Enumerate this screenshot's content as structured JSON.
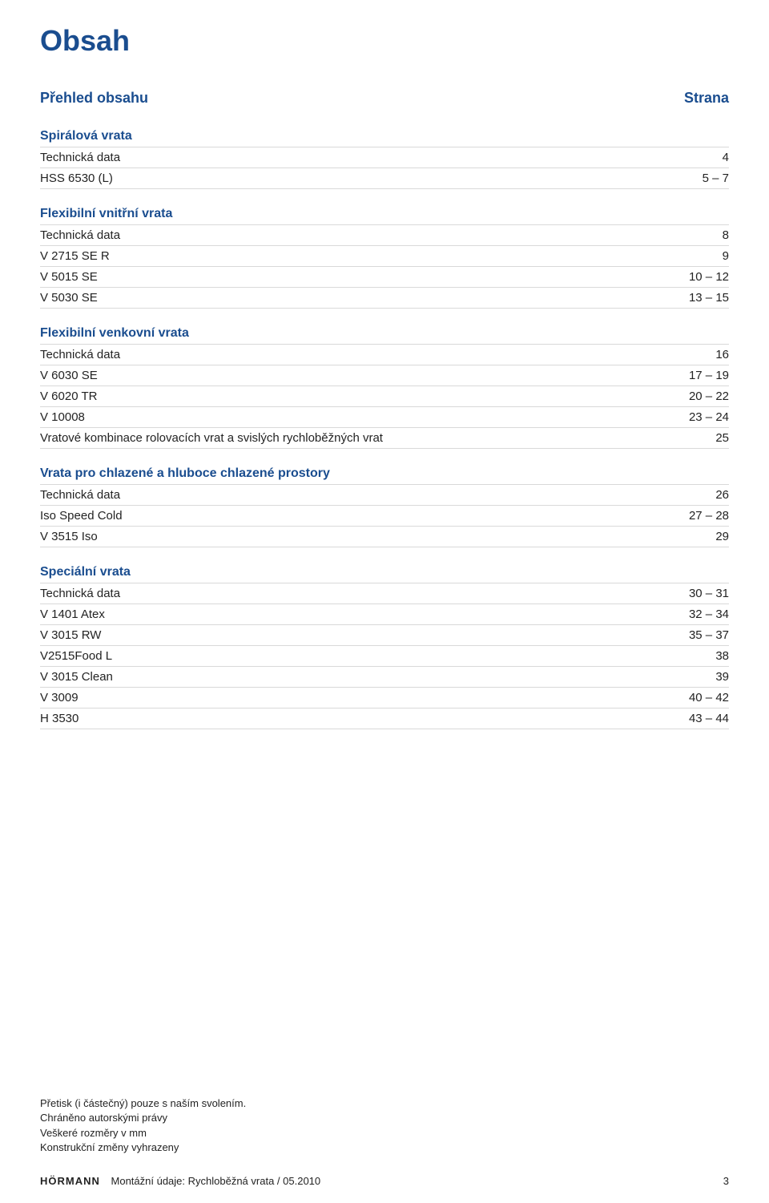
{
  "title": "Obsah",
  "overview_label": "Přehled obsahu",
  "page_column_label": "Strana",
  "colors": {
    "heading": "#1a4d8f",
    "text": "#232323",
    "rule": "#d9d9d9",
    "background": "#ffffff"
  },
  "sections": [
    {
      "heading": "Spirálová vrata",
      "rows": [
        {
          "label": "Technická data",
          "value": "4"
        },
        {
          "label": "HSS 6530 (L)",
          "value": "5 – 7"
        }
      ]
    },
    {
      "heading": "Flexibilní vnitřní vrata",
      "rows": [
        {
          "label": "Technická data",
          "value": "8"
        },
        {
          "label": "V 2715 SE R",
          "value": "9"
        },
        {
          "label": "V 5015 SE",
          "value": "10 – 12"
        },
        {
          "label": "V 5030 SE",
          "value": "13 – 15"
        }
      ]
    },
    {
      "heading": "Flexibilní venkovní vrata",
      "rows": [
        {
          "label": "Technická data",
          "value": "16"
        },
        {
          "label": "V 6030 SE",
          "value": "17 – 19"
        },
        {
          "label": "V 6020 TR",
          "value": "20 – 22"
        },
        {
          "label": "V 10008",
          "value": "23 – 24"
        },
        {
          "label": "Vratové kombinace rolovacích vrat a svislých rychloběžných vrat",
          "value": "25"
        }
      ]
    },
    {
      "heading": "Vrata pro chlazené a hluboce chlazené prostory",
      "rows": [
        {
          "label": "Technická data",
          "value": "26"
        },
        {
          "label": "Iso Speed Cold",
          "value": "27 – 28"
        },
        {
          "label": "V 3515 Iso",
          "value": "29"
        }
      ]
    },
    {
      "heading": "Speciální vrata",
      "rows": [
        {
          "label": "Technická data",
          "value": "30 – 31"
        },
        {
          "label": "V 1401 Atex",
          "value": "32 – 34"
        },
        {
          "label": "V 3015 RW",
          "value": "35 – 37"
        },
        {
          "label": "V2515Food L",
          "value": "38"
        },
        {
          "label": "V 3015 Clean",
          "value": "39"
        },
        {
          "label": "V 3009",
          "value": "40 – 42"
        },
        {
          "label": "H 3530",
          "value": "43 – 44"
        }
      ]
    }
  ],
  "footer_notes": [
    "Přetisk (i částečný) pouze s naším svolením.",
    "Chráněno autorskými právy",
    "Veškeré rozměry v mm",
    "Konstrukční změny vyhrazeny"
  ],
  "footer": {
    "brand": "HÖRMANN",
    "doc_info": "Montážní údaje: Rychloběžná vrata / 05.2010",
    "page_number": "3"
  }
}
